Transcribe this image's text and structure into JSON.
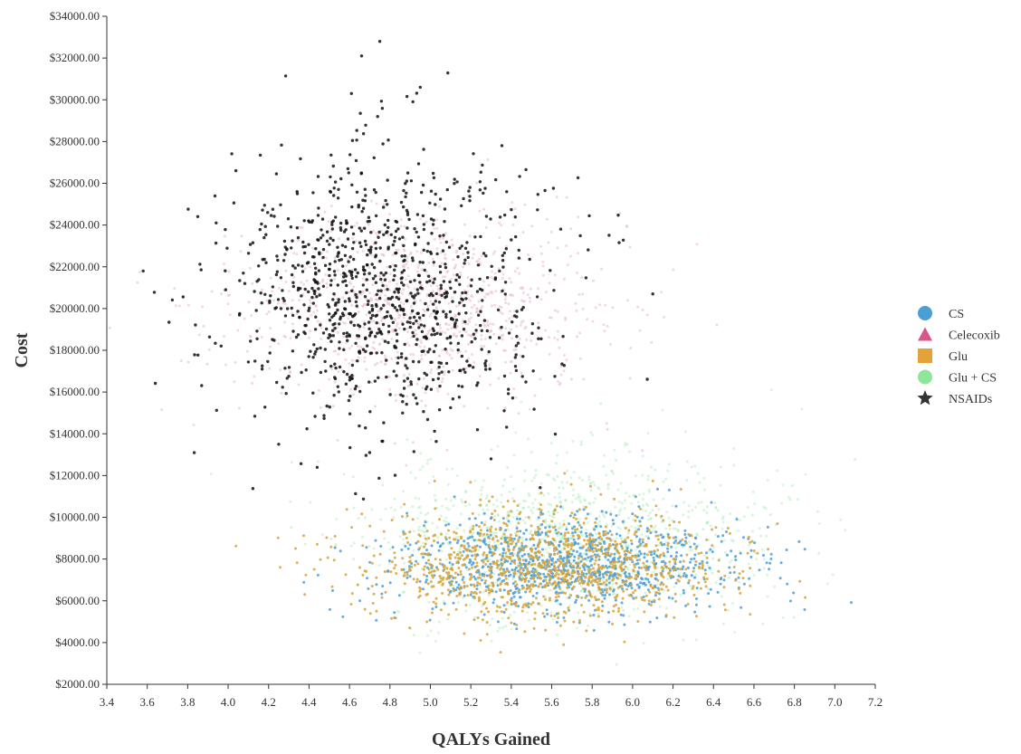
{
  "chart_data": {
    "type": "scatter",
    "title": "",
    "xlabel": "QALYs Gained",
    "ylabel": "Cost",
    "xlim": [
      3.4,
      7.2
    ],
    "ylim": [
      2000,
      34000
    ],
    "x_ticks": [
      3.4,
      3.6,
      3.8,
      4.0,
      4.2,
      4.4,
      4.6,
      4.8,
      5.0,
      5.2,
      5.4,
      5.6,
      5.8,
      6.0,
      6.2,
      6.4,
      6.6,
      6.8,
      7.0,
      7.2
    ],
    "x_tick_labels": [
      "3.4",
      "3.6",
      "3.8",
      "4.0",
      "4.2",
      "4.4",
      "4.6",
      "4.8",
      "5.0",
      "5.2",
      "5.4",
      "5.6",
      "5.8",
      "6.0",
      "6.2",
      "6.4",
      "6.6",
      "6.8",
      "7.0",
      "7.2"
    ],
    "y_ticks": [
      2000,
      4000,
      6000,
      8000,
      10000,
      12000,
      14000,
      16000,
      18000,
      20000,
      22000,
      24000,
      26000,
      28000,
      30000,
      32000,
      34000
    ],
    "y_tick_labels": [
      "$2000.00",
      "$4000.00",
      "$6000.00",
      "$8000.00",
      "$10000.00",
      "$12000.00",
      "$14000.00",
      "$16000.00",
      "$18000.00",
      "$20000.00",
      "$22000.00",
      "$24000.00",
      "$26000.00",
      "$28000.00",
      "$30000.00",
      "$32000.00",
      "$34000.00"
    ],
    "grid": false,
    "legend_position": "right",
    "legend": [
      {
        "name": "CS",
        "marker": "circle",
        "color": "#4b9fd5"
      },
      {
        "name": "Celecoxib",
        "marker": "triangle",
        "color": "#d9558a"
      },
      {
        "name": "Glu",
        "marker": "square",
        "color": "#e3a33a"
      },
      {
        "name": "Glu + CS",
        "marker": "circle",
        "color": "#8ee69a"
      },
      {
        "name": "NSAIDs",
        "marker": "star",
        "color": "#333333"
      }
    ],
    "series": [
      {
        "name": "Glu + CS",
        "color": "#8ee69a",
        "count": 1000,
        "x_mean": 5.65,
        "x_sd": 0.5,
        "y_mean": 9200,
        "y_sd": 2000,
        "seed": 11
      },
      {
        "name": "CS",
        "color": "#4b9fd5",
        "count": 1000,
        "x_mean": 5.65,
        "x_sd": 0.42,
        "y_mean": 7700,
        "y_sd": 1100,
        "seed": 23
      },
      {
        "name": "Glu",
        "color": "#d6a43c",
        "count": 1100,
        "x_mean": 5.55,
        "x_sd": 0.45,
        "y_mean": 7700,
        "y_sd": 1300,
        "seed": 37
      },
      {
        "name": "Celecoxib",
        "color": "#e9b8c8",
        "count": 900,
        "x_mean": 4.95,
        "x_sd": 0.45,
        "y_mean": 20000,
        "y_sd": 2200,
        "seed": 53
      },
      {
        "name": "NSAIDs",
        "color": "#111111",
        "count": 1000,
        "x_mean": 4.78,
        "x_sd": 0.38,
        "y_mean": 20800,
        "y_sd": 3200,
        "seed": 71
      },
      {
        "name": "NSAIDs",
        "color": "#111111",
        "count": 1,
        "x": [
          4.75
        ],
        "y": [
          32800
        ]
      },
      {
        "name": "NSAIDs",
        "color": "#111111",
        "count": 1,
        "x": [
          4.66
        ],
        "y": [
          32100
        ]
      },
      {
        "name": "NSAIDs",
        "color": "#111111",
        "count": 1,
        "x": [
          4.95
        ],
        "y": [
          30600
        ]
      },
      {
        "name": "NSAIDs",
        "color": "#111111",
        "count": 1,
        "x": [
          4.61
        ],
        "y": [
          30300
        ]
      },
      {
        "name": "NSAIDs",
        "color": "#111111",
        "count": 1,
        "x": [
          3.58
        ],
        "y": [
          21800
        ]
      },
      {
        "name": "NSAIDs",
        "color": "#111111",
        "count": 1,
        "x": [
          4.7
        ],
        "y": [
          13100
        ]
      },
      {
        "name": "NSAIDs",
        "color": "#111111",
        "count": 1,
        "x": [
          5.3
        ],
        "y": [
          12800
        ]
      },
      {
        "name": "NSAIDs",
        "color": "#111111",
        "count": 1,
        "x": [
          6.1
        ],
        "y": [
          20700
        ]
      },
      {
        "name": "NSAIDs",
        "color": "#111111",
        "count": 1,
        "x": [
          4.25
        ],
        "y": [
          13500
        ]
      }
    ]
  }
}
